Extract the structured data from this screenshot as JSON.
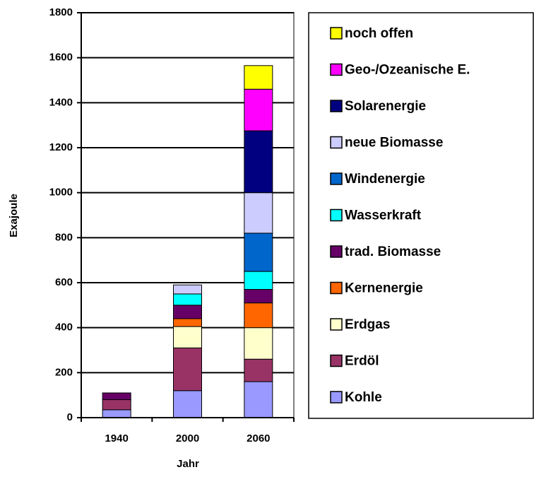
{
  "chart_data": {
    "type": "stacked_bar",
    "y_label": "Exajoule",
    "x_label": "Jahr",
    "categories": [
      "1940",
      "2000",
      "2060"
    ],
    "ylim": [
      0,
      1800
    ],
    "yticks": [
      0,
      200,
      400,
      600,
      800,
      1000,
      1200,
      1400,
      1600,
      1800
    ],
    "grid": true,
    "legend": "right",
    "series": [
      {
        "name": "Kohle",
        "color": "#9999ff",
        "values": [
          35,
          120,
          160
        ]
      },
      {
        "name": "Erdöl",
        "color": "#993366",
        "values": [
          45,
          190,
          100
        ]
      },
      {
        "name": "Erdgas",
        "color": "#ffffcc",
        "values": [
          0,
          95,
          140
        ]
      },
      {
        "name": "Kernenergie",
        "color": "#ff6600",
        "values": [
          0,
          35,
          110
        ]
      },
      {
        "name": "trad. Biomasse",
        "color": "#660066",
        "values": [
          30,
          60,
          60
        ]
      },
      {
        "name": "Wasserkraft",
        "color": "#00ffff",
        "values": [
          0,
          50,
          80
        ]
      },
      {
        "name": "Windenergie",
        "color": "#0066cc",
        "values": [
          0,
          0,
          170
        ]
      },
      {
        "name": "neue Biomasse",
        "color": "#ccccff",
        "values": [
          0,
          40,
          180
        ]
      },
      {
        "name": "Solarenergie",
        "color": "#000080",
        "values": [
          0,
          0,
          275
        ]
      },
      {
        "name": "Geo-/Ozeanische E.",
        "color": "#ff00ff",
        "values": [
          0,
          0,
          185
        ]
      },
      {
        "name": "noch offen",
        "color": "#ffff00",
        "values": [
          0,
          0,
          105
        ]
      }
    ]
  }
}
